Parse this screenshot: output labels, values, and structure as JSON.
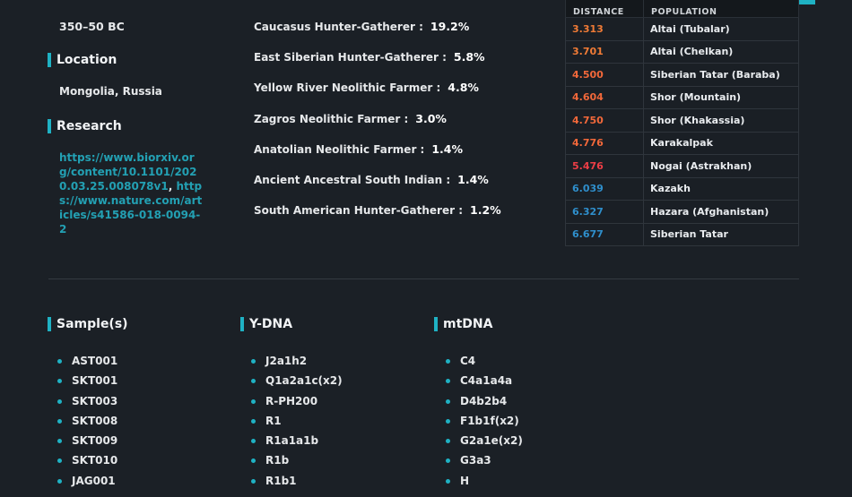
{
  "period": "350–50 BC",
  "location": {
    "title": "Location",
    "value": "Mongolia, Russia"
  },
  "research": {
    "title": "Research",
    "links": [
      "https://www.biorxiv.org/content/10.1101/2020.03.25.008078v1",
      "https://www.nature.com/articles/s41586-018-0094-2"
    ],
    "separator": ","
  },
  "ancestry": [
    {
      "name": "Caucasus Hunter-Gatherer :",
      "pct": "19.2%"
    },
    {
      "name": "East Siberian Hunter-Gatherer :",
      "pct": "5.8%"
    },
    {
      "name": "Yellow River Neolithic Farmer :",
      "pct": "4.8%"
    },
    {
      "name": "Zagros Neolithic Farmer :",
      "pct": "3.0%"
    },
    {
      "name": "Anatolian Neolithic Farmer :",
      "pct": "1.4%"
    },
    {
      "name": "Ancient Ancestral South Indian :",
      "pct": "1.4%"
    },
    {
      "name": "South American Hunter-Gatherer :",
      "pct": "1.2%"
    }
  ],
  "distances": {
    "headers": {
      "distance": "DISTANCE",
      "population": "POPULATION"
    },
    "rows": [
      {
        "distance": "3.313",
        "population": "Altai (Tubalar)",
        "color": "#f07b36"
      },
      {
        "distance": "3.701",
        "population": "Altai (Chelkan)",
        "color": "#f07b36"
      },
      {
        "distance": "4.500",
        "population": "Siberian Tatar (Baraba)",
        "color": "#f2683a"
      },
      {
        "distance": "4.604",
        "population": "Shor (Mountain)",
        "color": "#f2683a"
      },
      {
        "distance": "4.750",
        "population": "Shor (Khakassia)",
        "color": "#f2683a"
      },
      {
        "distance": "4.776",
        "population": "Karakalpak",
        "color": "#f2683a"
      },
      {
        "distance": "5.476",
        "population": "Nogai (Astrakhan)",
        "color": "#ee3e46"
      },
      {
        "distance": "6.039",
        "population": "Kazakh",
        "color": "#2f8fcc"
      },
      {
        "distance": "6.327",
        "population": "Hazara (Afghanistan)",
        "color": "#2f8fcc"
      },
      {
        "distance": "6.677",
        "population": "Siberian Tatar",
        "color": "#2f8fcc"
      }
    ]
  },
  "samples": {
    "title": "Sample(s)",
    "items": [
      "AST001",
      "SKT001",
      "SKT003",
      "SKT008",
      "SKT009",
      "SKT010",
      "JAG001"
    ]
  },
  "ydna": {
    "title": "Y-DNA",
    "items": [
      "J2a1h2",
      "Q1a2a1c(x2)",
      "R-PH200",
      "R1",
      "R1a1a1b",
      "R1b",
      "R1b1"
    ]
  },
  "mtdna": {
    "title": "mtDNA",
    "items": [
      "C4",
      "C4a1a4a",
      "D4b2b4",
      "F1b1f(x2)",
      "G2a1e(x2)",
      "G3a3",
      "H"
    ]
  }
}
